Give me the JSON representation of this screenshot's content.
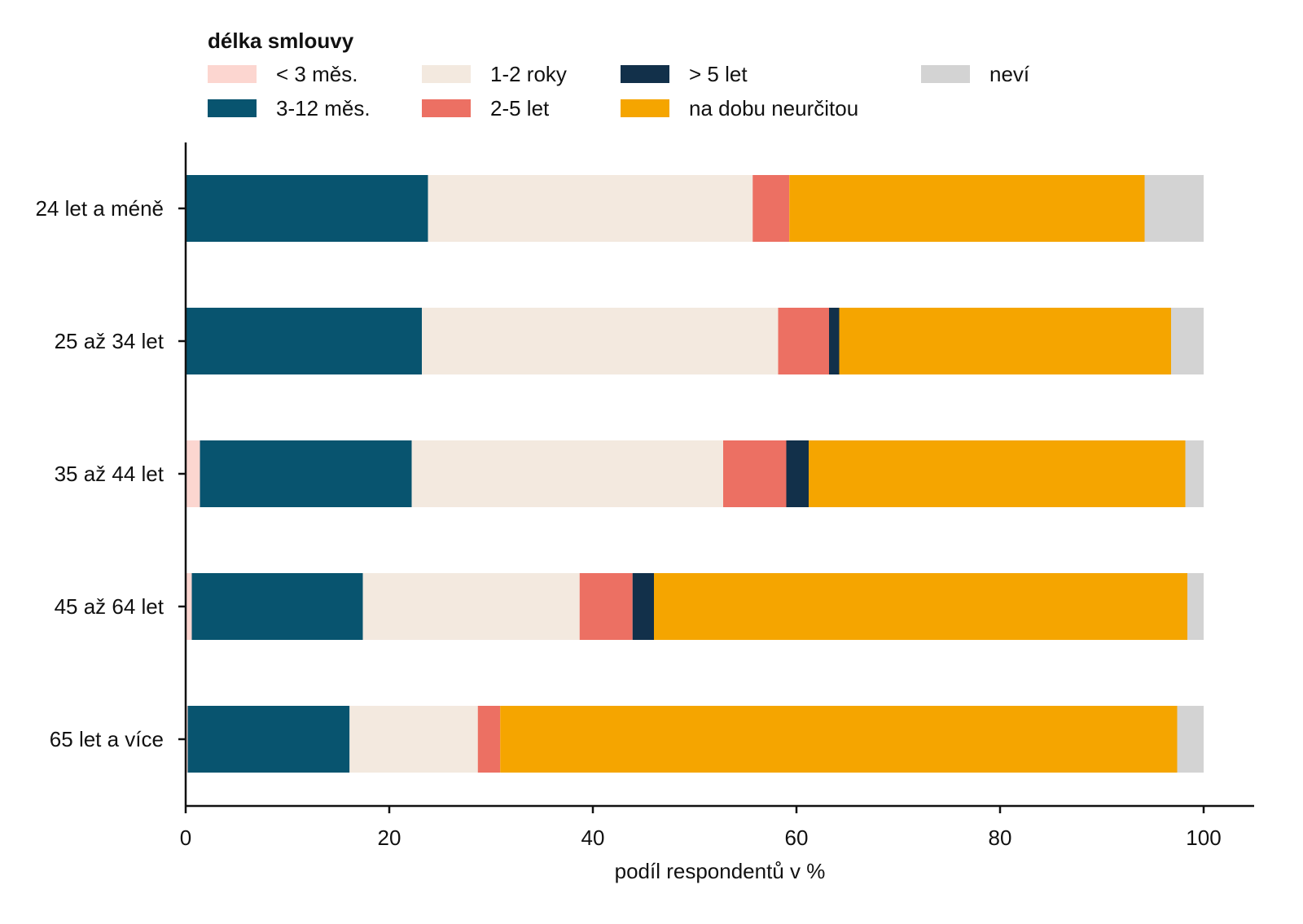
{
  "chart_data": {
    "type": "bar",
    "orientation": "horizontal",
    "stacked": true,
    "legend_title": "délka smlouvy",
    "legend_placement": "top",
    "categories": [
      "24 let a méně",
      "25 až 34 let",
      "35 až 44 let",
      "45 až 64 let",
      "65 let a více"
    ],
    "series": [
      {
        "name": "< 3 měs.",
        "color": "#fcd6d0",
        "values": [
          0,
          0,
          1.4,
          0.6,
          0.2
        ]
      },
      {
        "name": "3-12 měs.",
        "color": "#08546f",
        "values": [
          23.8,
          23.2,
          20.8,
          16.8,
          15.9
        ]
      },
      {
        "name": "1-2 roky",
        "color": "#f3e9df",
        "values": [
          31.9,
          35.0,
          30.6,
          21.3,
          12.6
        ]
      },
      {
        "name": "2-5 let",
        "color": "#ec7063",
        "values": [
          3.6,
          5.0,
          6.2,
          5.2,
          2.2
        ]
      },
      {
        "name": "> 5 let",
        "color": "#12304a",
        "values": [
          0,
          1.0,
          2.2,
          2.1,
          0
        ]
      },
      {
        "name": "na dobu neurčitou",
        "color": "#f5a500",
        "values": [
          34.9,
          32.6,
          37.0,
          52.4,
          66.5
        ]
      },
      {
        "name": "neví",
        "color": "#d3d3d3",
        "values": [
          5.8,
          3.2,
          1.8,
          1.6,
          2.6
        ]
      }
    ],
    "xlabel": "podíl respondentů v %",
    "ylabel": "",
    "xlim": [
      0,
      105
    ],
    "xticks": [
      "0",
      "20",
      "40",
      "60",
      "80",
      "100"
    ],
    "grid": false
  }
}
